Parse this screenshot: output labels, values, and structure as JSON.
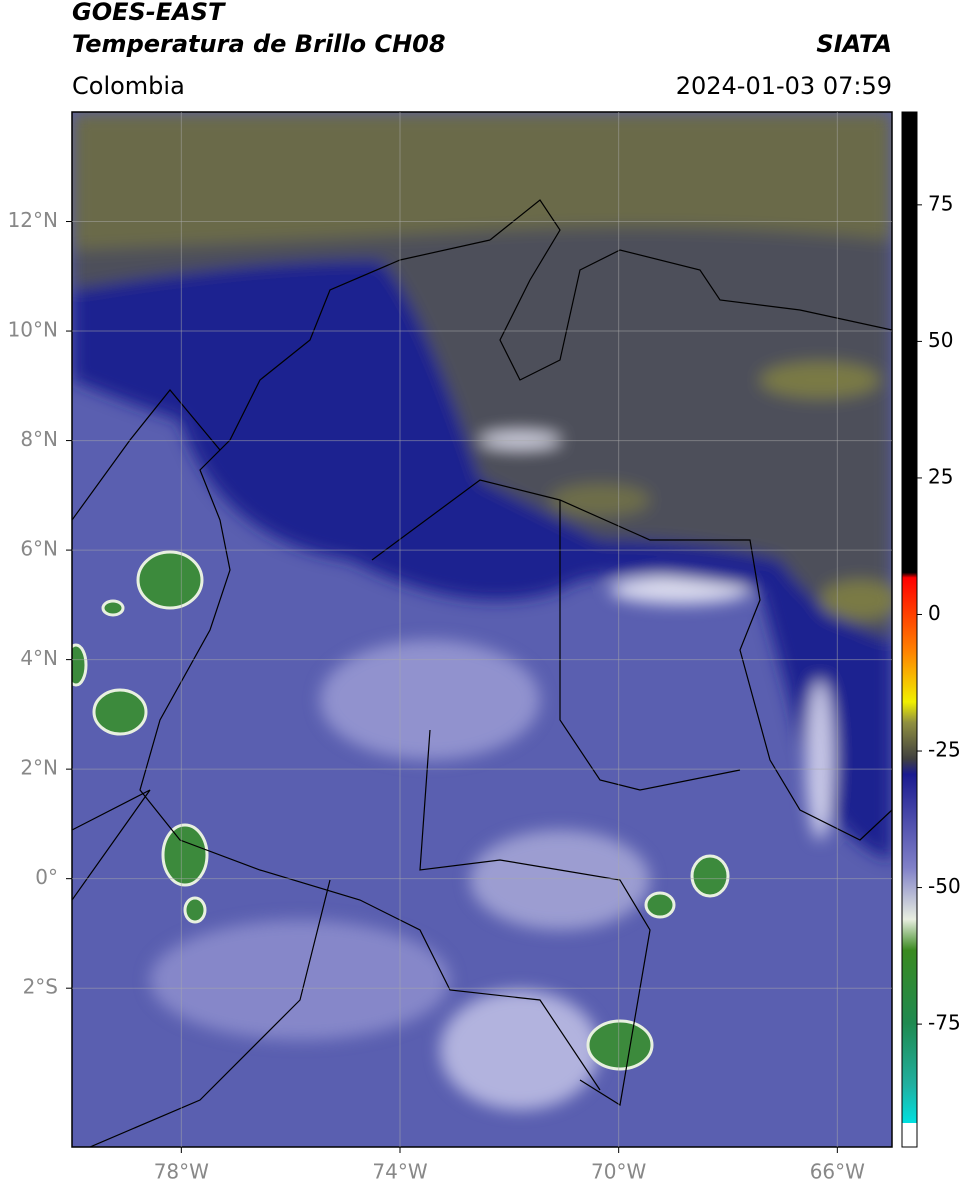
{
  "header": {
    "title": "GOES-EAST",
    "subtitle": "Temperatura de Brillo CH08",
    "region": "Colombia",
    "source": "SIATA",
    "datetime": "2024-01-03 07:59"
  },
  "map": {
    "xlim": [
      -80,
      -65
    ],
    "ylim": [
      -4.9,
      14
    ],
    "xticks": [
      {
        "value": -78,
        "label": "78°W"
      },
      {
        "value": -74,
        "label": "74°W"
      },
      {
        "value": -70,
        "label": "70°W"
      },
      {
        "value": -66,
        "label": "66°W"
      }
    ],
    "yticks": [
      {
        "value": 12,
        "label": "12°N"
      },
      {
        "value": 10,
        "label": "10°N"
      },
      {
        "value": 8,
        "label": "8°N"
      },
      {
        "value": 6,
        "label": "6°N"
      },
      {
        "value": 4,
        "label": "4°N"
      },
      {
        "value": 2,
        "label": "2°N"
      },
      {
        "value": 0,
        "label": "0°"
      },
      {
        "value": -2,
        "label": "2°S"
      }
    ],
    "grid": true
  },
  "colorbar": {
    "lim": [
      -97.5,
      92
    ],
    "ticks": [
      75,
      50,
      25,
      0,
      -25,
      -50,
      -75
    ]
  }
}
